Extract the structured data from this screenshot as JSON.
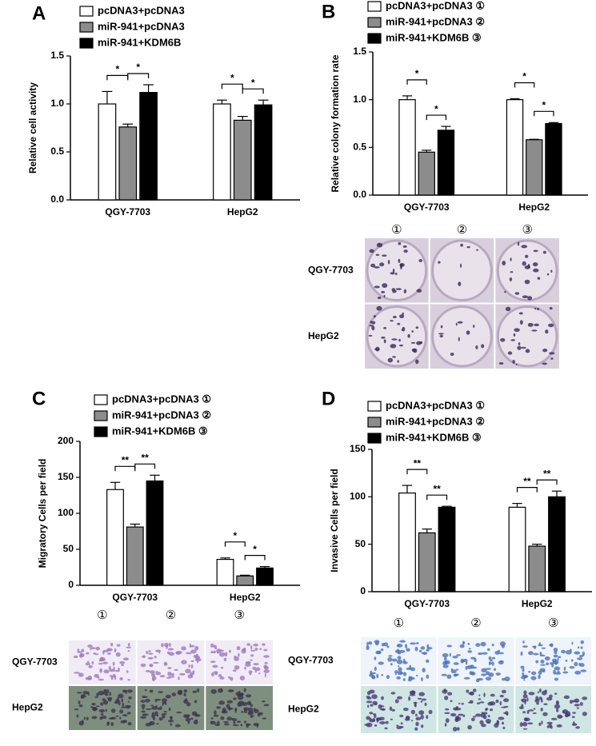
{
  "chart_data": [
    {
      "type": "bar",
      "panel": "A",
      "ylabel": "Relative cell activity",
      "categories": [
        "QGY-7703",
        "HepG2"
      ],
      "series": [
        {
          "name": "pcDNA3+pcDNA3",
          "color": "#ffffff",
          "values": [
            1.0,
            1.0
          ],
          "errors": [
            0.13,
            0.04
          ]
        },
        {
          "name": "miR-941+pcDNA3",
          "color": "#8c8c8c",
          "values": [
            0.76,
            0.83
          ],
          "errors": [
            0.03,
            0.04
          ]
        },
        {
          "name": "miR-941+KDM6B",
          "color": "#000000",
          "values": [
            1.12,
            0.99
          ],
          "errors": [
            0.08,
            0.05
          ]
        }
      ],
      "ylim": [
        0,
        1.5
      ],
      "yticks": [
        {
          "value": 0,
          "label": "0.0"
        },
        0.5,
        {
          "value": 1,
          "label": "1.0"
        },
        1.5
      ],
      "significance": [
        [
          "*",
          "*"
        ],
        [
          "*",
          "*"
        ]
      ]
    },
    {
      "type": "bar",
      "panel": "B",
      "ylabel": "Relative colony formation rate",
      "categories": [
        "QGY-7703",
        "HepG2"
      ],
      "series": [
        {
          "name": "pcDNA3+pcDNA3 ①",
          "color": "#ffffff",
          "values": [
            1.0,
            1.0
          ],
          "errors": [
            0.04,
            0.01
          ]
        },
        {
          "name": "miR-941+pcDNA3 ②",
          "color": "#8c8c8c",
          "values": [
            0.45,
            0.58
          ],
          "errors": [
            0.02,
            0.005
          ]
        },
        {
          "name": "miR-941+KDM6B ③",
          "color": "#000000",
          "values": [
            0.68,
            0.75
          ],
          "errors": [
            0.04,
            0.01
          ]
        }
      ],
      "ylim": [
        0,
        1.5
      ],
      "yticks": [
        {
          "value": 0,
          "label": "0.0"
        },
        0.5,
        {
          "value": 1,
          "label": "1.0"
        },
        1.5
      ],
      "significance": [
        [
          "*",
          "*"
        ],
        [
          "*",
          "*"
        ]
      ],
      "images": {
        "column_labels": [
          "①",
          "②",
          "③"
        ],
        "row_labels": [
          "QGY-7703",
          "HepG2"
        ]
      }
    },
    {
      "type": "bar",
      "panel": "C",
      "ylabel": "Migratory Cells per field",
      "categories": [
        "QGY-7703",
        "HepG2"
      ],
      "series": [
        {
          "name": "pcDNA3+pcDNA3 ①",
          "color": "#ffffff",
          "values": [
            133,
            36
          ],
          "errors": [
            10,
            2
          ]
        },
        {
          "name": "miR-941+pcDNA3 ②",
          "color": "#8c8c8c",
          "values": [
            81,
            13
          ],
          "errors": [
            4,
            1
          ]
        },
        {
          "name": "miR-941+KDM6B ③",
          "color": "#000000",
          "values": [
            145,
            24
          ],
          "errors": [
            8,
            2
          ]
        }
      ],
      "ylim": [
        0,
        200
      ],
      "yticks": [
        0,
        50,
        100,
        150,
        200
      ],
      "significance": [
        [
          "**",
          "**"
        ],
        [
          "*",
          "*"
        ]
      ],
      "images": {
        "column_labels": [
          "①",
          "②",
          "③"
        ],
        "row_labels": [
          "QGY-7703",
          "HepG2"
        ]
      }
    },
    {
      "type": "bar",
      "panel": "D",
      "ylabel": "Invasive Cells per field",
      "categories": [
        "QGY-7703",
        "HepG2"
      ],
      "series": [
        {
          "name": "pcDNA3+pcDNA3 ①",
          "color": "#ffffff",
          "values": [
            104,
            89
          ],
          "errors": [
            8,
            4
          ]
        },
        {
          "name": "miR-941+pcDNA3 ②",
          "color": "#8c8c8c",
          "values": [
            62,
            48
          ],
          "errors": [
            4,
            2
          ]
        },
        {
          "name": "miR-941+KDM6B ③",
          "color": "#000000",
          "values": [
            89,
            100
          ],
          "errors": [
            1,
            6
          ]
        }
      ],
      "ylim": [
        0,
        150
      ],
      "yticks": [
        0,
        50,
        100,
        150
      ],
      "significance": [
        [
          "**",
          "**"
        ],
        [
          "**",
          "**"
        ]
      ],
      "images": {
        "column_labels": [
          "①",
          "②",
          "③"
        ],
        "row_labels": [
          "QGY-7703",
          "HepG2"
        ]
      }
    }
  ]
}
